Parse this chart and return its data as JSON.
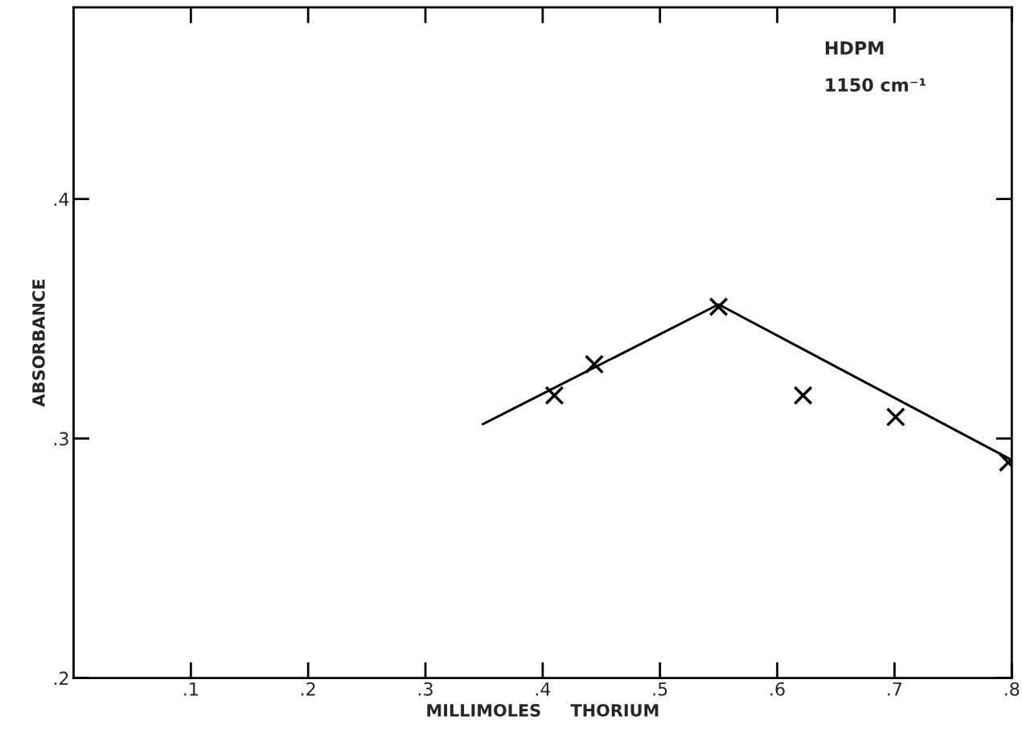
{
  "chart_data": {
    "type": "scatter",
    "xlabel": "MILLIMOLES     THORIUM",
    "ylabel": "ABSORBANCE",
    "annotations": [
      "HDPM",
      "1150 cm⁻¹"
    ],
    "xlim": [
      0,
      0.8
    ],
    "ylim": [
      0.2,
      0.48
    ],
    "xticks": [
      {
        "value": 0.1,
        "label": ".1"
      },
      {
        "value": 0.2,
        "label": ".2"
      },
      {
        "value": 0.3,
        "label": ".3"
      },
      {
        "value": 0.4,
        "label": ".4"
      },
      {
        "value": 0.5,
        "label": ".5"
      },
      {
        "value": 0.6,
        "label": ".6"
      },
      {
        "value": 0.7,
        "label": ".7"
      },
      {
        "value": 0.8,
        "label": ".8"
      }
    ],
    "yticks": [
      {
        "value": 0.2,
        "label": ".2"
      },
      {
        "value": 0.3,
        "label": ".3"
      },
      {
        "value": 0.4,
        "label": ".4"
      }
    ],
    "grid": false,
    "legend": false,
    "series": [
      {
        "color": "#000000",
        "marker": "cross",
        "x": [
          0.41,
          0.444,
          0.55,
          0.622,
          0.701,
          0.797
        ],
        "values": [
          0.318,
          0.331,
          0.355,
          0.318,
          0.309,
          0.29
        ]
      },
      {
        "type": "line",
        "color": "#000000",
        "line_style": "solid",
        "x": [
          0.349,
          0.55,
          0.8
        ],
        "values": [
          0.306,
          0.356,
          0.291
        ]
      }
    ]
  }
}
